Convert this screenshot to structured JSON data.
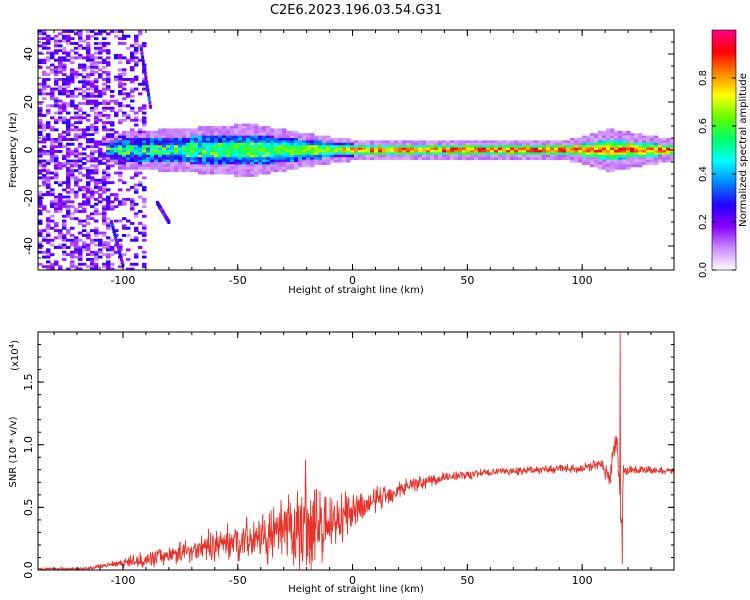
{
  "figure_title": "C2E6.2023.196.03.54.G31",
  "chart_data": [
    {
      "type": "heatmap",
      "title": "C2E6.2023.196.03.54.G31",
      "xlabel": "Height of straight line (km)",
      "ylabel": "Frequency (Hz)",
      "xlim": [
        -137,
        140
      ],
      "ylim": [
        -50,
        50
      ],
      "xticks": [
        -100,
        -50,
        0,
        50,
        100
      ],
      "yticks": [
        -40,
        -20,
        0,
        20,
        40
      ],
      "colorbar": {
        "label": "Normalized spectral amplitude",
        "range": [
          0,
          1
        ],
        "ticks": [
          "0.0",
          "0.2",
          "0.4",
          "0.6",
          "0.8"
        ],
        "colors": [
          "#ffffff",
          "#cc88ff",
          "#8800ff",
          "#2200ff",
          "#0088ff",
          "#00ffff",
          "#00ff66",
          "#66ff00",
          "#ffff00",
          "#ff8800",
          "#ff0000",
          "#ff0088"
        ]
      },
      "band": {
        "center_frequency_hz": 0,
        "profile": [
          {
            "x": -107,
            "half_width_hz": 2.0,
            "amp": 0.25
          },
          {
            "x": -100,
            "half_width_hz": 3.5,
            "amp": 0.35
          },
          {
            "x": -80,
            "half_width_hz": 4.0,
            "amp": 0.45
          },
          {
            "x": -60,
            "half_width_hz": 4.5,
            "amp": 0.55
          },
          {
            "x": -45,
            "half_width_hz": 5.0,
            "amp": 0.6
          },
          {
            "x": -25,
            "half_width_hz": 3.5,
            "amp": 0.65
          },
          {
            "x": -10,
            "half_width_hz": 2.5,
            "amp": 0.7
          },
          {
            "x": 0,
            "half_width_hz": 2.0,
            "amp": 0.9
          },
          {
            "x": 60,
            "half_width_hz": 2.0,
            "amp": 0.95
          },
          {
            "x": 95,
            "half_width_hz": 2.0,
            "amp": 0.95
          },
          {
            "x": 112,
            "half_width_hz": 4.0,
            "amp": 0.9
          },
          {
            "x": 140,
            "half_width_hz": 2.0,
            "amp": 0.95
          }
        ]
      },
      "noise_region_x": [
        -137,
        -90
      ],
      "streaks": [
        {
          "x": [
            -92,
            -88
          ],
          "y": [
            42,
            18
          ]
        },
        {
          "x": [
            -85,
            -80
          ],
          "y": [
            -22,
            -30
          ]
        },
        {
          "x": [
            -105,
            -100
          ],
          "y": [
            -30,
            -48
          ]
        }
      ]
    },
    {
      "type": "line",
      "xlabel": "Height of straight line (km)",
      "ylabel": "SNR (10 * v/v)",
      "exponent_label": "(x10",
      "exponent_power": "4",
      "exponent_close": ")",
      "xlim": [
        -137,
        140
      ],
      "ylim": [
        0,
        1.9
      ],
      "xticks": [
        -100,
        -50,
        0,
        50,
        100
      ],
      "yticks": [
        "0.0",
        "0.5",
        "1.0",
        "1.5"
      ],
      "ytick_values": [
        0.0,
        0.5,
        1.0,
        1.5
      ],
      "line_color": "#e8332a",
      "series": [
        {
          "envelope": [
            {
              "x": -137,
              "y": 0.01,
              "noise": 0.008
            },
            {
              "x": -115,
              "y": 0.01,
              "noise": 0.01
            },
            {
              "x": -105,
              "y": 0.05,
              "noise": 0.02
            },
            {
              "x": -95,
              "y": 0.07,
              "noise": 0.04
            },
            {
              "x": -80,
              "y": 0.12,
              "noise": 0.06
            },
            {
              "x": -65,
              "y": 0.18,
              "noise": 0.09
            },
            {
              "x": -50,
              "y": 0.24,
              "noise": 0.12
            },
            {
              "x": -35,
              "y": 0.27,
              "noise": 0.17
            },
            {
              "x": -22,
              "y": 0.32,
              "noise": 0.3
            },
            {
              "x": -10,
              "y": 0.38,
              "noise": 0.22
            },
            {
              "x": 0,
              "y": 0.45,
              "noise": 0.12
            },
            {
              "x": 12,
              "y": 0.58,
              "noise": 0.08
            },
            {
              "x": 25,
              "y": 0.68,
              "noise": 0.05
            },
            {
              "x": 40,
              "y": 0.74,
              "noise": 0.035
            },
            {
              "x": 60,
              "y": 0.78,
              "noise": 0.025
            },
            {
              "x": 80,
              "y": 0.8,
              "noise": 0.025
            },
            {
              "x": 100,
              "y": 0.81,
              "noise": 0.025
            },
            {
              "x": 108,
              "y": 0.86,
              "noise": 0.04
            },
            {
              "x": 112,
              "y": 0.72,
              "noise": 0.05
            },
            {
              "x": 115,
              "y": 1.1,
              "noise": 0.1
            },
            {
              "x": 117,
              "y": 0.3,
              "noise": 0.1
            },
            {
              "x": 118,
              "y": 0.8,
              "noise": 0.03
            },
            {
              "x": 140,
              "y": 0.79,
              "noise": 0.02
            }
          ],
          "spikes": [
            {
              "x": 116.5,
              "y": 1.93
            },
            {
              "x": 117.5,
              "y": 0.05
            },
            {
              "x": -20.5,
              "y": 0.88
            },
            {
              "x": -25,
              "y": 0.12
            }
          ]
        }
      ]
    }
  ]
}
